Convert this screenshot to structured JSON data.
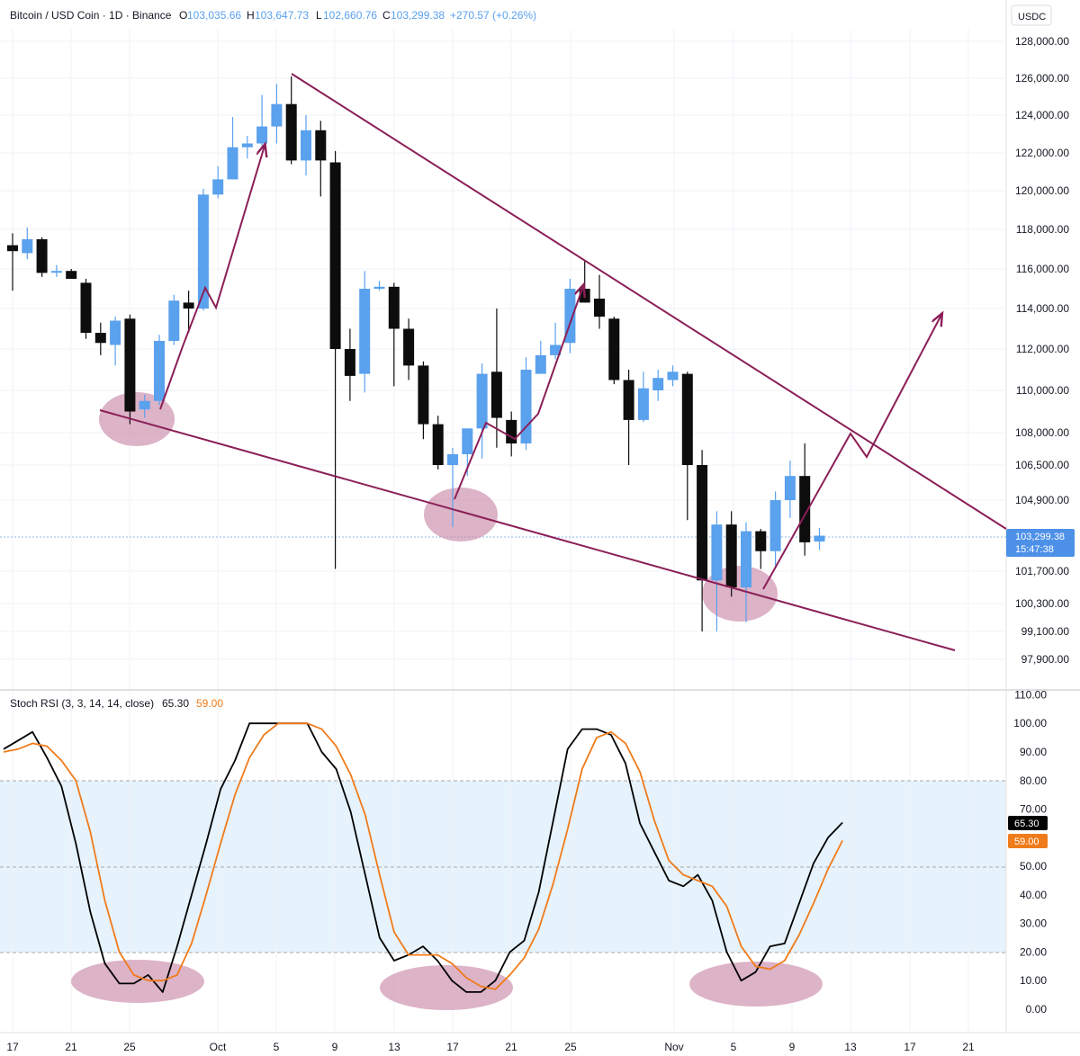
{
  "header": {
    "symbol": "Bitcoin / USD Coin · 1D · Binance",
    "o_label": "O",
    "o_value": "103,035.66",
    "h_label": "H",
    "h_value": "103,647.73",
    "l_label": "L",
    "l_value": "102,660.76",
    "c_label": "C",
    "c_value": "103,299.38",
    "change": "+270.57 (+0.26%)"
  },
  "price_axis": {
    "currency": "USDC",
    "tick_labels": [
      "128,000.00",
      "126,000.00",
      "124,000.00",
      "122,000.00",
      "120,000.00",
      "118,000.00",
      "116,000.00",
      "114,000.00",
      "112,000.00",
      "110,000.00",
      "108,000.00",
      "106,500.00",
      "104,900.00",
      "101,700.00",
      "100,300.00",
      "99,100.00",
      "97,900.00"
    ],
    "last_price_label": "103,299.38",
    "countdown_label": "15:47:38"
  },
  "indicator": {
    "title": "Stoch RSI (3, 3, 14, 14, close)",
    "k_value": "65.30",
    "d_value": "59.00",
    "tick_labels": [
      "110.00",
      "100.00",
      "90.00",
      "80.00",
      "70.00",
      "60.00",
      "50.00",
      "40.00",
      "30.00",
      "20.00",
      "10.00",
      "0.00"
    ]
  },
  "time_axis": {
    "labels": [
      "17",
      "21",
      "25",
      "Oct",
      "5",
      "9",
      "13",
      "17",
      "21",
      "25",
      "Nov",
      "5",
      "9",
      "13",
      "17",
      "21"
    ]
  },
  "colors": {
    "up_candle": "#5aa1ee",
    "down_candle": "#0d0d0d",
    "trendline": "#8b1f57",
    "highlight": "#c98aa9",
    "k_line": "#000000",
    "d_line": "#f07b1a",
    "band_fill": "#e6f2fc",
    "price_tag": "#4d90e8"
  },
  "chart_data": [
    {
      "type": "candlestick",
      "title": "Bitcoin / USD Coin · 1D · Binance",
      "y_axis_scale": "linear, non-uniform labels",
      "grid": true,
      "candles": [
        {
          "o": 117200,
          "h": 117800,
          "l": 114900,
          "c": 116900
        },
        {
          "o": 116800,
          "h": 118100,
          "l": 116500,
          "c": 117500
        },
        {
          "o": 117500,
          "h": 117600,
          "l": 115600,
          "c": 115800
        },
        {
          "o": 115900,
          "h": 116200,
          "l": 115600,
          "c": 115900
        },
        {
          "o": 115900,
          "h": 116000,
          "l": 115500,
          "c": 115500
        },
        {
          "o": 115300,
          "h": 115500,
          "l": 112500,
          "c": 112800
        },
        {
          "o": 112800,
          "h": 113300,
          "l": 111700,
          "c": 112300
        },
        {
          "o": 112200,
          "h": 113600,
          "l": 111200,
          "c": 113400
        },
        {
          "o": 113500,
          "h": 113700,
          "l": 108400,
          "c": 109000
        },
        {
          "o": 109100,
          "h": 109800,
          "l": 108700,
          "c": 109500
        },
        {
          "o": 109500,
          "h": 112700,
          "l": 109300,
          "c": 112400
        },
        {
          "o": 112400,
          "h": 114700,
          "l": 112200,
          "c": 114400
        },
        {
          "o": 114300,
          "h": 114900,
          "l": 112800,
          "c": 114000
        },
        {
          "o": 114000,
          "h": 120100,
          "l": 113900,
          "c": 119800
        },
        {
          "o": 119800,
          "h": 121300,
          "l": 119600,
          "c": 120600
        },
        {
          "o": 120600,
          "h": 123900,
          "l": 120600,
          "c": 122300
        },
        {
          "o": 122300,
          "h": 122900,
          "l": 121700,
          "c": 122500
        },
        {
          "o": 122500,
          "h": 125100,
          "l": 122300,
          "c": 123400
        },
        {
          "o": 123400,
          "h": 125700,
          "l": 122500,
          "c": 124600
        },
        {
          "o": 124600,
          "h": 126100,
          "l": 121400,
          "c": 121600
        },
        {
          "o": 121600,
          "h": 124000,
          "l": 120800,
          "c": 123200
        },
        {
          "o": 123200,
          "h": 123700,
          "l": 119700,
          "c": 121600
        },
        {
          "o": 121500,
          "h": 122100,
          "l": 101800,
          "c": 112000
        },
        {
          "o": 112000,
          "h": 113000,
          "l": 109500,
          "c": 110700
        },
        {
          "o": 110800,
          "h": 115900,
          "l": 109900,
          "c": 115000
        },
        {
          "o": 115000,
          "h": 115400,
          "l": 114900,
          "c": 115100
        },
        {
          "o": 115100,
          "h": 115300,
          "l": 110200,
          "c": 113000
        },
        {
          "o": 113000,
          "h": 113500,
          "l": 110500,
          "c": 111200
        },
        {
          "o": 111200,
          "h": 111400,
          "l": 107700,
          "c": 108400
        },
        {
          "o": 108400,
          "h": 108800,
          "l": 106300,
          "c": 106500
        },
        {
          "o": 106500,
          "h": 107300,
          "l": 103700,
          "c": 107000
        },
        {
          "o": 107000,
          "h": 108100,
          "l": 106000,
          "c": 108200
        },
        {
          "o": 108200,
          "h": 111300,
          "l": 106800,
          "c": 110800
        },
        {
          "o": 110900,
          "h": 114000,
          "l": 107300,
          "c": 108700
        },
        {
          "o": 108600,
          "h": 109000,
          "l": 106900,
          "c": 107500
        },
        {
          "o": 107500,
          "h": 111600,
          "l": 107200,
          "c": 111000
        },
        {
          "o": 110800,
          "h": 112400,
          "l": 110800,
          "c": 111700
        },
        {
          "o": 111700,
          "h": 113300,
          "l": 111500,
          "c": 112200
        },
        {
          "o": 112300,
          "h": 115500,
          "l": 111800,
          "c": 115000
        },
        {
          "o": 115000,
          "h": 116400,
          "l": 114300,
          "c": 114300
        },
        {
          "o": 114500,
          "h": 115700,
          "l": 113000,
          "c": 113600
        },
        {
          "o": 113500,
          "h": 113600,
          "l": 110300,
          "c": 110500
        },
        {
          "o": 110500,
          "h": 111000,
          "l": 106500,
          "c": 108600
        },
        {
          "o": 108600,
          "h": 110900,
          "l": 108500,
          "c": 110100
        },
        {
          "o": 110000,
          "h": 111000,
          "l": 109500,
          "c": 110600
        },
        {
          "o": 110500,
          "h": 111200,
          "l": 110200,
          "c": 110900
        },
        {
          "o": 110800,
          "h": 110900,
          "l": 104000,
          "c": 106500
        },
        {
          "o": 106500,
          "h": 107200,
          "l": 99100,
          "c": 101300
        },
        {
          "o": 101300,
          "h": 104400,
          "l": 99100,
          "c": 103800
        },
        {
          "o": 103800,
          "h": 104400,
          "l": 100600,
          "c": 101000
        },
        {
          "o": 101000,
          "h": 103900,
          "l": 99500,
          "c": 103500
        },
        {
          "o": 103500,
          "h": 103600,
          "l": 101800,
          "c": 102600
        },
        {
          "o": 102600,
          "h": 105300,
          "l": 101800,
          "c": 104900
        },
        {
          "o": 104900,
          "h": 106700,
          "l": 104100,
          "c": 106000
        },
        {
          "o": 106000,
          "h": 107500,
          "l": 102400,
          "c": 103000
        },
        {
          "o": 103035.66,
          "h": 103647.73,
          "l": 102660.76,
          "c": 103299.38
        }
      ],
      "last_price": 103299.38
    },
    {
      "type": "line",
      "title": "Stoch RSI (3, 3, 14, 14, close)",
      "ylim": [
        0,
        110
      ],
      "band": [
        20,
        80
      ],
      "series": [
        {
          "name": "K",
          "values": [
            91,
            94,
            97,
            88,
            78,
            58,
            34,
            16,
            9,
            9,
            12,
            6,
            22,
            40,
            58,
            77,
            87,
            100,
            100,
            100,
            100,
            100,
            90,
            84,
            69,
            47,
            25,
            17,
            19,
            22,
            17,
            10,
            6,
            6,
            10,
            20,
            24,
            41,
            66,
            91,
            98,
            98,
            96,
            86,
            65,
            55,
            45,
            43,
            47,
            38,
            20,
            10,
            13,
            22,
            23,
            37,
            51,
            60,
            65.3
          ]
        },
        {
          "name": "D",
          "values": [
            90,
            91,
            93,
            92,
            87,
            80,
            62,
            38,
            20,
            12,
            10,
            10,
            12,
            23,
            40,
            58,
            75,
            88,
            96,
            100,
            100,
            100,
            98,
            92,
            82,
            68,
            47,
            27,
            19,
            19,
            19,
            16,
            11,
            8,
            7,
            12,
            18,
            28,
            44,
            63,
            84,
            95,
            97,
            93,
            83,
            66,
            52,
            47,
            45,
            43,
            36,
            22,
            15,
            14,
            17,
            26,
            37,
            49,
            59
          ]
        }
      ]
    }
  ]
}
